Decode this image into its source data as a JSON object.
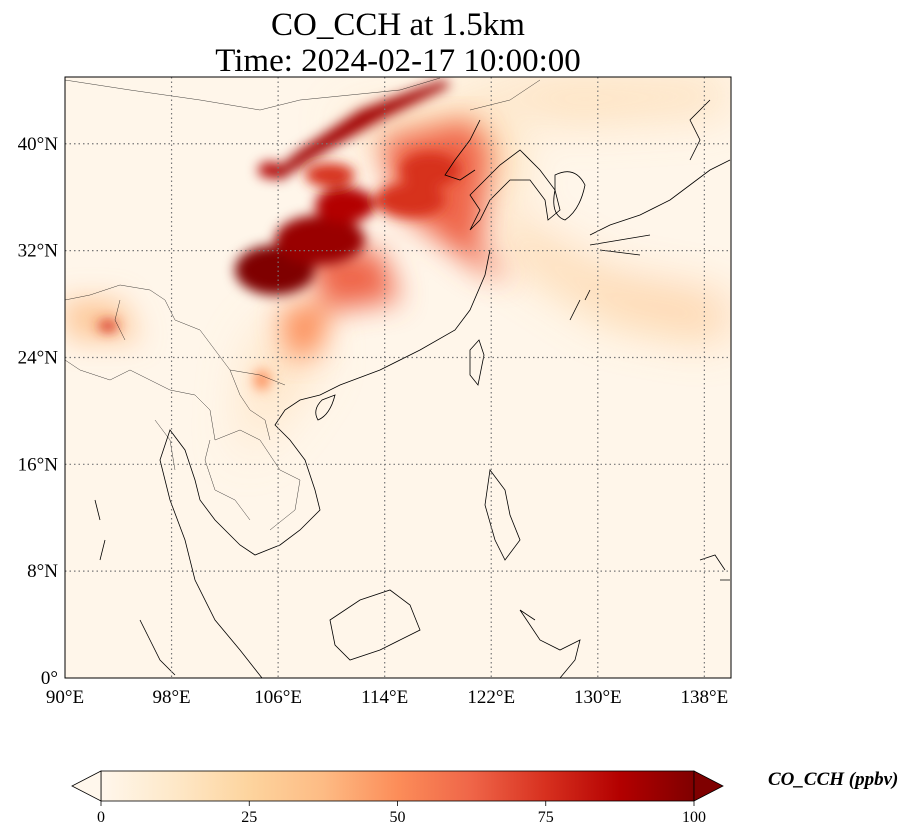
{
  "map": {
    "title_line1": "CO_CCH at 1.5km",
    "title_line2": "Time: 2024-02-17 10:00:00",
    "extent": {
      "lon": [
        90,
        140
      ],
      "lat": [
        0,
        45
      ]
    },
    "lon_ticks": [
      90,
      98,
      106,
      114,
      122,
      130,
      138
    ],
    "lon_labels": [
      "90°E",
      "98°E",
      "106°E",
      "114°E",
      "122°E",
      "130°E",
      "138°E"
    ],
    "lat_ticks": [
      0,
      8,
      16,
      24,
      32,
      40
    ],
    "lat_labels": [
      "0°",
      "8°N",
      "16°N",
      "24°N",
      "32°N",
      "40°N"
    ],
    "gridlines": "dotted",
    "colormap": "OrRd",
    "colorbar": {
      "label": "CO_CCH (ppbv)",
      "min": 0,
      "max": 100,
      "ticks": [
        0,
        25,
        50,
        75,
        100
      ],
      "tick_labels": [
        "0",
        "25",
        "50",
        "75",
        "100"
      ],
      "extend": "both",
      "colors": [
        "#fff7ec",
        "#fee8c8",
        "#fdd49e",
        "#fdbb84",
        "#fc8d59",
        "#ef6548",
        "#d7301f",
        "#b30000",
        "#7f0000"
      ]
    },
    "plumes": [
      {
        "lon": 107.0,
        "lat": 31.0,
        "value": 100
      },
      {
        "lon": 109.5,
        "lat": 33.5,
        "value": 90
      },
      {
        "lon": 118.0,
        "lat": 36.5,
        "value": 70
      },
      {
        "lon": 112.0,
        "lat": 41.5,
        "value": 85
      },
      {
        "lon": 125.0,
        "lat": 31.0,
        "value": 30
      },
      {
        "lon": 93.5,
        "lat": 26.0,
        "value": 60
      }
    ]
  }
}
